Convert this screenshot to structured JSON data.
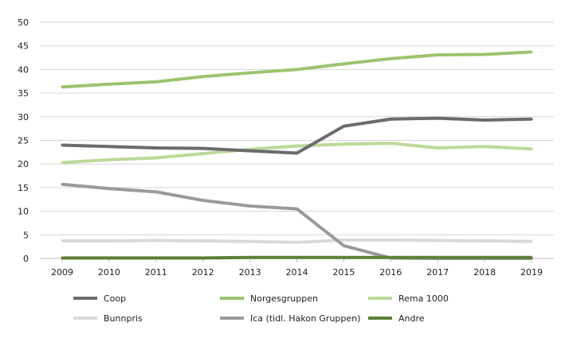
{
  "chart_data": {
    "type": "line",
    "title": "",
    "xlabel": "",
    "ylabel": "",
    "x": [
      2009,
      2010,
      2011,
      2012,
      2013,
      2014,
      2015,
      2016,
      2017,
      2018,
      2019
    ],
    "ylim": [
      0,
      50
    ],
    "yticks": [
      0,
      5,
      10,
      15,
      20,
      25,
      30,
      35,
      40,
      45,
      50
    ],
    "grid": "horizontal",
    "legend_position": "bottom",
    "series": [
      {
        "name": "Coop",
        "color": "#6b6b6b",
        "values": [
          24.0,
          23.7,
          23.4,
          23.3,
          22.8,
          22.3,
          28.0,
          29.5,
          29.7,
          29.3,
          29.5
        ]
      },
      {
        "name": "Norgesgruppen",
        "color": "#9bc46d",
        "values": [
          36.3,
          36.9,
          37.4,
          38.5,
          39.3,
          40.0,
          41.2,
          42.3,
          43.1,
          43.2,
          43.7
        ]
      },
      {
        "name": "Rema 1000",
        "color": "#bcd99a",
        "values": [
          20.3,
          20.9,
          21.3,
          22.2,
          23.1,
          23.8,
          24.2,
          24.4,
          23.4,
          23.7,
          23.2
        ]
      },
      {
        "name": "Bunnpris",
        "color": "#d9d9d9",
        "values": [
          3.7,
          3.7,
          3.8,
          3.7,
          3.6,
          3.4,
          3.9,
          3.9,
          3.8,
          3.7,
          3.6
        ]
      },
      {
        "name": "Ica (tidl. Hakon Gruppen)",
        "color": "#9a9a9a",
        "values": [
          15.7,
          14.8,
          14.1,
          12.3,
          11.1,
          10.5,
          2.7,
          0.1,
          0.0,
          0.0,
          0.0
        ]
      },
      {
        "name": "Andre",
        "color": "#5f7f35",
        "values": [
          0.1,
          0.1,
          0.1,
          0.1,
          0.2,
          0.2,
          0.2,
          0.2,
          0.2,
          0.2,
          0.2
        ]
      }
    ]
  }
}
